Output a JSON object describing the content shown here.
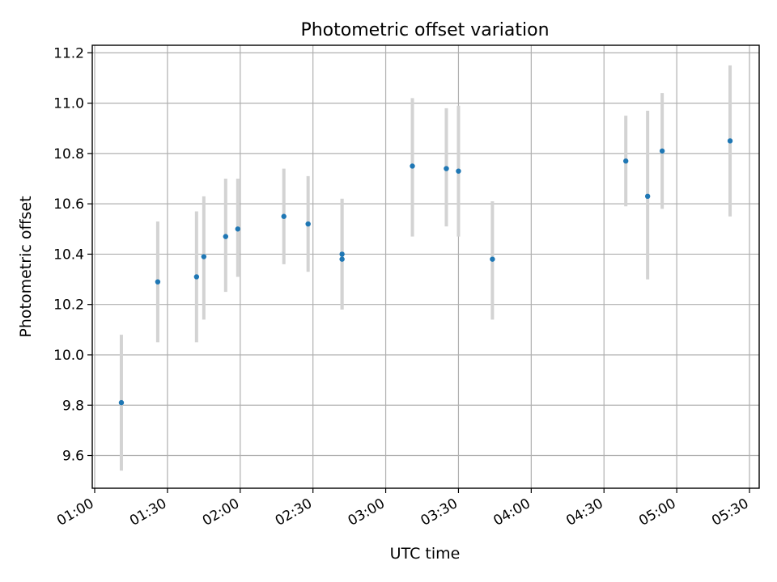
{
  "chart_data": {
    "type": "scatter",
    "title": "Photometric offset variation",
    "xlabel": "UTC time",
    "ylabel": "Photometric offset",
    "xlim": [
      "00:59",
      "05:34"
    ],
    "ylim": [
      9.47,
      11.23
    ],
    "x_ticks": [
      "01:00",
      "01:30",
      "02:00",
      "02:30",
      "03:00",
      "03:30",
      "04:00",
      "04:30",
      "05:00",
      "05:30"
    ],
    "y_ticks": [
      "9.6",
      "9.8",
      "10.0",
      "10.2",
      "10.4",
      "10.6",
      "10.8",
      "11.0",
      "11.2"
    ],
    "grid": true,
    "series": [
      {
        "x": [
          "01:11",
          "01:26",
          "01:42",
          "01:45",
          "01:54",
          "01:59",
          "02:18",
          "02:28",
          "02:42",
          "02:42",
          "03:11",
          "03:25",
          "03:30",
          "03:44",
          "04:39",
          "04:48",
          "04:54",
          "05:22"
        ],
        "y": [
          9.81,
          10.29,
          10.31,
          10.39,
          10.47,
          10.5,
          10.55,
          10.52,
          10.4,
          10.38,
          10.75,
          10.74,
          10.73,
          10.38,
          10.77,
          10.63,
          10.81,
          10.85
        ],
        "err_low": [
          9.54,
          10.05,
          10.05,
          10.14,
          10.25,
          10.31,
          10.36,
          10.33,
          10.18,
          10.18,
          10.47,
          10.51,
          10.47,
          10.14,
          10.59,
          10.3,
          10.58,
          10.55
        ],
        "err_high": [
          10.08,
          10.53,
          10.57,
          10.63,
          10.7,
          10.7,
          10.74,
          10.71,
          10.62,
          10.62,
          11.02,
          10.98,
          10.99,
          10.61,
          10.95,
          10.97,
          11.04,
          11.15
        ]
      }
    ],
    "colors": {
      "points": "#1f77b4",
      "error_bars": "#d3d3d3",
      "grid": "#b0b0b0"
    }
  }
}
